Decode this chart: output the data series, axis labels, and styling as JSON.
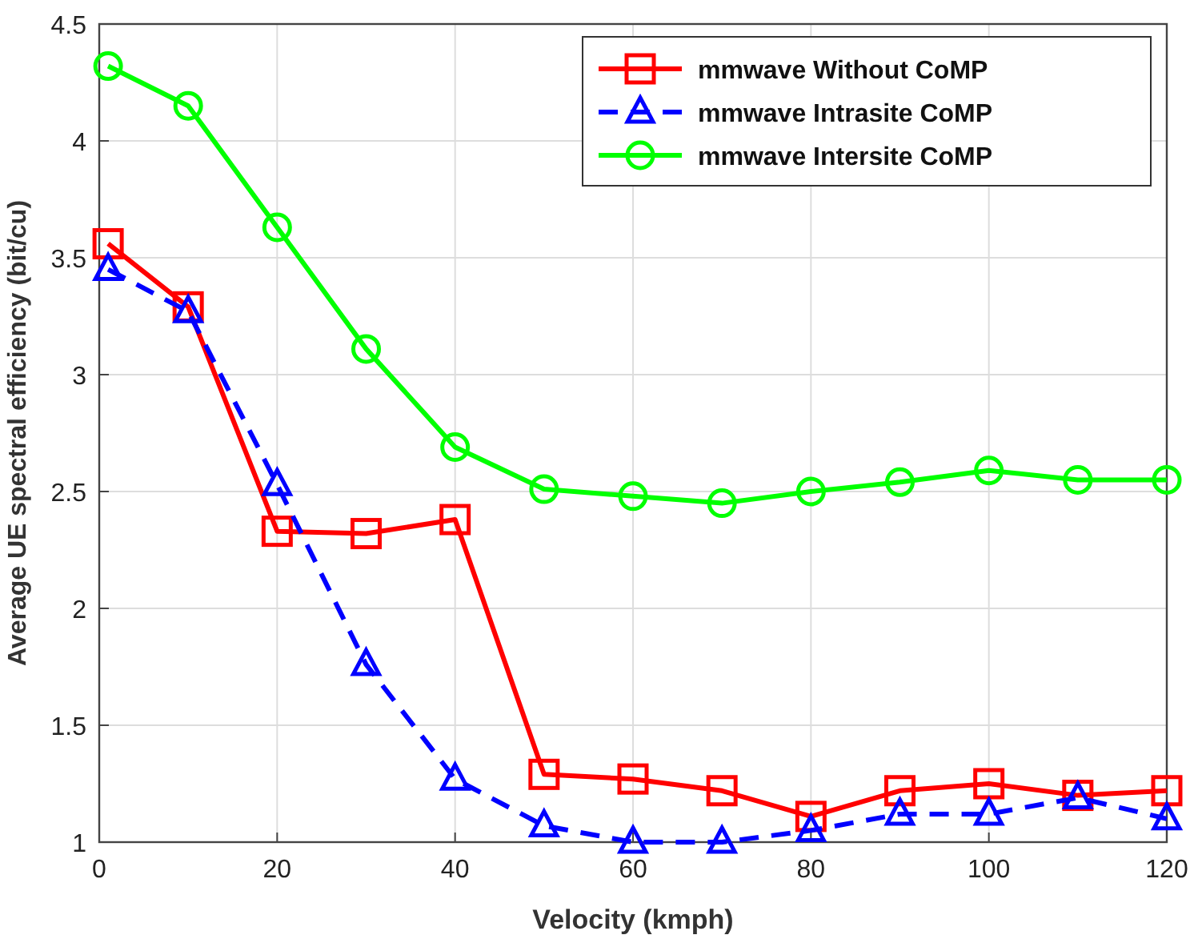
{
  "chart_data": {
    "type": "line",
    "xlabel": "Velocity (kmph)",
    "ylabel": "Average UE spectral efficiency (bit/cu)",
    "x": [
      1,
      10,
      20,
      30,
      40,
      50,
      60,
      70,
      80,
      90,
      100,
      110,
      120
    ],
    "series": [
      {
        "name": "mmwave Without CoMP",
        "color": "#ff0000",
        "marker": "square",
        "line_style": "solid",
        "values": [
          3.56,
          3.29,
          2.33,
          2.32,
          2.38,
          1.29,
          1.27,
          1.22,
          1.11,
          1.22,
          1.25,
          1.2,
          1.22
        ]
      },
      {
        "name": "mmwave Intrasite CoMP",
        "color": "#0000ff",
        "marker": "triangle",
        "line_style": "dashed",
        "values": [
          3.45,
          3.27,
          2.53,
          1.76,
          1.27,
          1.07,
          1.0,
          1.0,
          1.05,
          1.12,
          1.12,
          1.19,
          1.1
        ]
      },
      {
        "name": "mmwave Intersite CoMP",
        "color": "#00ff00",
        "marker": "circle",
        "line_style": "solid",
        "values": [
          4.32,
          4.15,
          3.63,
          3.11,
          2.69,
          2.51,
          2.48,
          2.45,
          2.5,
          2.54,
          2.59,
          2.55,
          2.55
        ]
      }
    ],
    "xlim": [
      0,
      120
    ],
    "xticks": [
      0,
      20,
      40,
      60,
      80,
      100,
      120
    ],
    "ylim": [
      1,
      4.5
    ],
    "yticks": [
      1,
      1.5,
      2,
      2.5,
      3,
      3.5,
      4,
      4.5
    ],
    "grid": true,
    "legend": "top right"
  }
}
